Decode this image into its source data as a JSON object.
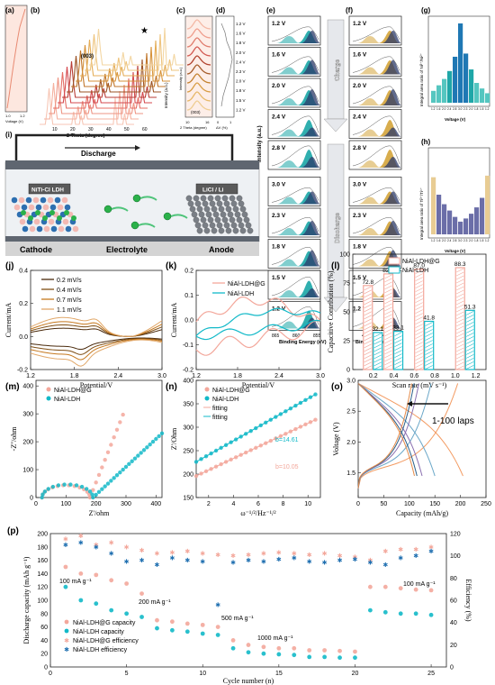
{
  "panels": {
    "a": {
      "letter": "(a)",
      "xlabel": "Voltage (V)",
      "ticks": [
        "1.0",
        "1.2"
      ]
    },
    "b": {
      "letter": "(b)",
      "peak": "(003)",
      "xlabel": "2 Theta (degree)",
      "ylabel": "Intensity (a.u.)",
      "xticks": [
        "10",
        "20",
        "30",
        "40",
        "50",
        "60"
      ],
      "direction": "Discharge",
      "star": "★"
    },
    "c": {
      "letter": "(c)",
      "peak": "(003)",
      "xlabel": "2 Theta (degree)",
      "ylabel": "Intensity (a.u.)",
      "xticks": [
        "10",
        "16"
      ]
    },
    "d": {
      "letter": "(d)",
      "xlabel": "ΔV (%)",
      "xticks": [
        "0",
        "1"
      ],
      "voltages": [
        "1.2 V",
        "1.6 V",
        "1.8 V",
        "2.0 V",
        "2.4 V",
        "2.3 V",
        "2.0 V",
        "1.8 V",
        "1.5 V",
        "1.2 V"
      ]
    },
    "e": {
      "letter": "(e)",
      "labels": [
        "1.2 V",
        "1.6 V",
        "2.0 V",
        "2.4 V",
        "2.8 V",
        "3.0 V",
        "2.3 V",
        "1.8 V",
        "1.5 V",
        "1.2 V"
      ],
      "xlabel": "Binding Energy (eV)",
      "ylabel": "Intensity (a.u.)",
      "xticks": [
        "865",
        "860",
        "855"
      ],
      "sat": "Sat."
    },
    "f": {
      "letter": "(f)",
      "labels": [
        "1.2 V",
        "1.6 V",
        "2.0 V",
        "2.4 V",
        "2.8 V",
        "3.0 V",
        "2.3 V",
        "1.8 V",
        "1.5 V",
        "1.2 V"
      ],
      "xlabel": "Binding Energy (eV)",
      "xticks": [
        "460",
        "455"
      ],
      "charge": "Charge",
      "discharge": "Discharge"
    },
    "g": {
      "letter": "(g)",
      "ylabel": "Integral area ratio of Ni³⁺/Ni²⁺",
      "xlabel": "Voltage (V)",
      "xticks": [
        "1.2",
        "1.6",
        "2.0",
        "2.4",
        "2.8",
        "3.0",
        "2.3",
        "2.0",
        "1.8",
        "1.5",
        "1.2"
      ]
    },
    "h": {
      "letter": "(h)",
      "ylabel": "Integral area ratio of Ti³⁺/Ti⁴⁺",
      "xlabel": "Voltage (V)",
      "xticks": [
        "1.2",
        "1.6",
        "2.0",
        "2.4",
        "2.8",
        "3.0",
        "2.3",
        "2.0",
        "1.8",
        "1.5",
        "1.2"
      ]
    },
    "i": {
      "letter": "(i)",
      "electron": "e⁻",
      "cathode_box": "NiTi-Cl LDH",
      "anode_box": "LiCl / Li",
      "cathode": "Cathode",
      "electrolyte": "Electrolyte",
      "anode": "Anode"
    }
  },
  "colors": {
    "orange1": "#e1a86a",
    "orange2": "#c5781e",
    "orange3": "#7f4e14",
    "orange4": "#4a2a0c",
    "pink": "#f3a79b",
    "cyan": "#12b9c8",
    "teal": "#1fa7a8",
    "navy": "#1f2c5c",
    "blue": "#1f6fb0"
  },
  "chart_data": [
    {
      "id": "j",
      "type": "line",
      "letter": "(j)",
      "xlabel": "Potential/V",
      "ylabel": "Current/mA",
      "xlim": [
        1.2,
        3.0
      ],
      "ylim": [
        -0.2,
        0.4
      ],
      "xticks": [
        "1.2",
        "1.8",
        "2.4",
        "3.0"
      ],
      "yticks": [
        "-0.2",
        "0.0",
        "0.2",
        "0.4"
      ],
      "series": [
        {
          "name": "0.2 mV/s",
          "color": "#4a2a0c"
        },
        {
          "name": "0.4 mV/s",
          "color": "#7f4e14"
        },
        {
          "name": "0.7 mV/s",
          "color": "#c5781e"
        },
        {
          "name": "1.1 mV/s",
          "color": "#e1a86a"
        }
      ]
    },
    {
      "id": "k",
      "type": "line",
      "letter": "(k)",
      "xlabel": "Potential/V",
      "ylabel": "Current/mA",
      "xlim": [
        1.2,
        3.0
      ],
      "ylim": [
        -0.2,
        0.2
      ],
      "xticks": [
        "1.2",
        "1.8",
        "2.4",
        "3.0"
      ],
      "yticks": [
        "-0.2",
        "-0.1",
        "0.0",
        "0.1",
        "0.2"
      ],
      "series": [
        {
          "name": "NiAl-LDH@G",
          "color": "#f3a79b"
        },
        {
          "name": "NiAl-LDH",
          "color": "#12b9c8"
        }
      ]
    },
    {
      "id": "l",
      "type": "bar",
      "letter": "(l)",
      "xlabel": "Scan rate (mV s⁻¹)",
      "ylabel": "Capacitive Contribution (%)",
      "ylim": [
        0,
        100
      ],
      "xticks": [
        "0.2",
        "0.4",
        "0.6",
        "0.8",
        "1.0",
        "1.2"
      ],
      "yticks": [
        "0",
        "25",
        "50",
        "75",
        "100"
      ],
      "categories": [
        0.2,
        0.4,
        0.7,
        1.1
      ],
      "series": [
        {
          "name": "NiAl-LDH@G",
          "values": [
            72.8,
            82.9,
            87.0,
            88.3
          ],
          "color": "#f3a79b"
        },
        {
          "name": "NiAl-LDH",
          "values": [
            32.1,
            33.1,
            41.8,
            51.3
          ],
          "color": "#12b9c8"
        }
      ],
      "labels_g": [
        "72.8",
        "82.9",
        "87.0",
        "88.3"
      ],
      "labels_n": [
        "32.1",
        "33.1",
        "41.8",
        "51.3"
      ]
    },
    {
      "id": "m",
      "type": "scatter",
      "letter": "(m)",
      "xlabel": "Z'/ohm",
      "ylabel": "-Z''/ohm",
      "xlim": [
        0,
        420
      ],
      "ylim": [
        0,
        420
      ],
      "xticks": [
        "0",
        "100",
        "200",
        "300",
        "400"
      ],
      "yticks": [
        "0",
        "100",
        "200",
        "300",
        "400"
      ],
      "series": [
        {
          "name": "NiAl-LDH@G",
          "color": "#f3a79b"
        },
        {
          "name": "NiAl-LDH",
          "color": "#12b9c8"
        }
      ]
    },
    {
      "id": "n",
      "type": "scatter",
      "letter": "(n)",
      "xlabel": "ω⁻¹/²/Hz⁻¹/²",
      "ylabel": "Z'/Ohm",
      "xlim": [
        1,
        11
      ],
      "ylim": [
        150,
        400
      ],
      "xticks": [
        "2",
        "4",
        "6",
        "8",
        "10"
      ],
      "yticks": [
        "150",
        "200",
        "250",
        "300",
        "350",
        "400"
      ],
      "series": [
        {
          "name": "NiAl-LDH@G",
          "color": "#f3a79b",
          "x": [
            1.0,
            1.4,
            1.8,
            2.2,
            2.6,
            3.0,
            3.4,
            3.8,
            4.2,
            4.6,
            5.0,
            5.4,
            5.8,
            6.2,
            6.6,
            7.0,
            7.4,
            7.8,
            8.2,
            8.6,
            9.0,
            9.4,
            9.8,
            10.2,
            10.6
          ],
          "y": [
            196,
            201,
            206,
            211,
            216,
            221,
            226,
            231,
            236,
            241,
            246,
            251,
            256,
            261,
            266,
            271,
            276,
            281,
            286,
            291,
            296,
            301,
            306,
            311,
            316
          ]
        },
        {
          "name": "NiAl-LDH",
          "color": "#12b9c8",
          "x": [
            1.0,
            1.4,
            1.8,
            2.2,
            2.6,
            3.0,
            3.4,
            3.8,
            4.2,
            4.6,
            5.0,
            5.4,
            5.8,
            6.2,
            6.6,
            7.0,
            7.4,
            7.8,
            8.2,
            8.6,
            9.0,
            9.4,
            9.8,
            10.2,
            10.6
          ],
          "y": [
            226,
            232,
            238,
            244,
            250,
            256,
            262,
            268,
            274,
            280,
            286,
            292,
            298,
            304,
            310,
            316,
            322,
            328,
            334,
            340,
            346,
            352,
            358,
            364,
            370
          ]
        }
      ],
      "fits": [
        "fitting",
        "fitting"
      ],
      "slopes": [
        "b=14.61",
        "b=10.05"
      ]
    },
    {
      "id": "o",
      "type": "line",
      "letter": "(o)",
      "xlabel": "Capacity (mAh/g)",
      "ylabel": "Voltage (V)",
      "xlim": [
        0,
        250
      ],
      "ylim": [
        1.1,
        3.0
      ],
      "xticks": [
        "0",
        "50",
        "100",
        "150",
        "200",
        "250"
      ],
      "yticks": [
        "1.5",
        "2.0",
        "2.5",
        "3.0"
      ],
      "annotation": "1-100 laps"
    },
    {
      "id": "p",
      "type": "scatter",
      "letter": "(p)",
      "xlabel": "Cycle number (n)",
      "ylabel": "Discharge capacity (mAh g⁻¹)",
      "y2label": "Efficiency (%)",
      "xlim": [
        0,
        26
      ],
      "ylim": [
        0,
        200
      ],
      "y2lim": [
        0,
        120
      ],
      "xticks": [
        "0",
        "5",
        "10",
        "15",
        "20",
        "25"
      ],
      "yticks": [
        "0",
        "20",
        "40",
        "60",
        "80",
        "100",
        "120",
        "140",
        "160",
        "180",
        "200"
      ],
      "y2ticks": [
        "0",
        "20",
        "40",
        "60",
        "80",
        "100",
        "120"
      ],
      "rate_labels": [
        "100 mA g⁻¹",
        "200 mA g⁻¹",
        "500 mA g⁻¹",
        "1000 mA g⁻¹",
        "100 mA g⁻¹"
      ],
      "x": [
        1,
        2,
        3,
        4,
        5,
        6,
        7,
        8,
        9,
        10,
        11,
        12,
        13,
        14,
        15,
        16,
        17,
        18,
        19,
        20,
        21,
        22,
        23,
        24,
        25
      ],
      "series": [
        {
          "name": "NiAl-LDH@G capacity",
          "color": "#f3a79b",
          "marker": "circle",
          "values": [
            150,
            140,
            138,
            130,
            125,
            110,
            70,
            68,
            65,
            63,
            60,
            40,
            33,
            30,
            28,
            28,
            25,
            25,
            24,
            23,
            120,
            120,
            118,
            116,
            115
          ]
        },
        {
          "name": "NiAl-LDH capacity",
          "color": "#12b9c8",
          "marker": "circle",
          "values": [
            120,
            100,
            95,
            85,
            80,
            75,
            58,
            55,
            53,
            50,
            48,
            28,
            22,
            20,
            19,
            18,
            15,
            15,
            14,
            14,
            85,
            82,
            80,
            80,
            78
          ]
        },
        {
          "name": "NiAl-LDH@G efficiency",
          "color": "#f3a79b",
          "marker": "star",
          "axis": "y2",
          "values": [
            115,
            118,
            110,
            112,
            108,
            105,
            102,
            103,
            104,
            102,
            101,
            100,
            101,
            102,
            103,
            102,
            101,
            102,
            100,
            99,
            96,
            104,
            106,
            106,
            108
          ]
        },
        {
          "name": "NiAl-LDH efficiency",
          "color": "#1f6fb0",
          "marker": "star",
          "axis": "y2",
          "values": [
            110,
            112,
            108,
            102,
            95,
            96,
            92,
            98,
            96,
            95,
            56,
            94,
            96,
            95,
            97,
            98,
            95,
            94,
            96,
            97,
            94,
            92,
            98,
            100,
            104
          ]
        }
      ]
    }
  ]
}
